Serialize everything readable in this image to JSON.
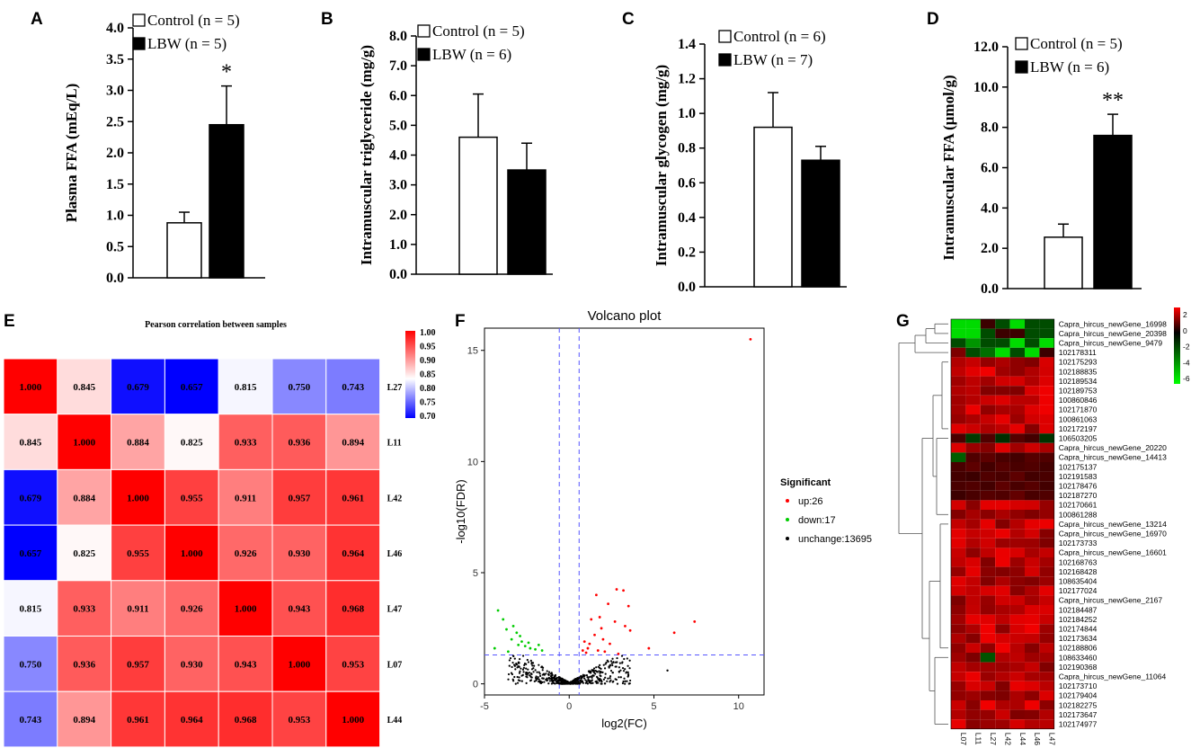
{
  "panels": {
    "A": "A",
    "B": "B",
    "C": "C",
    "D": "D",
    "E": "E",
    "F": "F",
    "G": "G"
  },
  "chart_data": [
    {
      "id": "A",
      "type": "bar",
      "ylabel": "Plasma FFA (mEq/L)",
      "ylim": [
        0,
        4.0
      ],
      "yticks": [
        "0.0",
        "0.5",
        "1.0",
        "1.5",
        "2.0",
        "2.5",
        "3.0",
        "3.5",
        "4.0"
      ],
      "series": [
        {
          "name": "Control (n = 5)",
          "value": 0.88,
          "error": 0.17,
          "fill": "#ffffff"
        },
        {
          "name": "LBW (n = 5)",
          "value": 2.45,
          "error": 0.62,
          "fill": "#000000"
        }
      ],
      "significance": "*"
    },
    {
      "id": "B",
      "type": "bar",
      "ylabel": "Intramuscular triglyceride (mg/g)",
      "ylim": [
        0,
        8.0
      ],
      "yticks": [
        "0.0",
        "1.0",
        "2.0",
        "3.0",
        "4.0",
        "5.0",
        "6.0",
        "7.0",
        "8.0"
      ],
      "series": [
        {
          "name": "Control (n = 5)",
          "value": 4.6,
          "error": 1.45,
          "fill": "#ffffff"
        },
        {
          "name": "LBW (n = 6)",
          "value": 3.5,
          "error": 0.9,
          "fill": "#000000"
        }
      ],
      "significance": ""
    },
    {
      "id": "C",
      "type": "bar",
      "ylabel": "Intramuscular glycogen (mg/g)",
      "ylim": [
        0,
        1.4
      ],
      "yticks": [
        "0.0",
        "0.2",
        "0.4",
        "0.6",
        "0.8",
        "1.0",
        "1.2",
        "1.4"
      ],
      "series": [
        {
          "name": "Control (n = 6)",
          "value": 0.92,
          "error": 0.2,
          "fill": "#ffffff"
        },
        {
          "name": "LBW (n = 7)",
          "value": 0.73,
          "error": 0.08,
          "fill": "#000000"
        }
      ],
      "significance": ""
    },
    {
      "id": "D",
      "type": "bar",
      "ylabel": "Intramuscular FFA (μmol/g)",
      "ylim": [
        0,
        12.0
      ],
      "yticks": [
        "0.0",
        "2.0",
        "4.0",
        "6.0",
        "8.0",
        "10.0",
        "12.0"
      ],
      "series": [
        {
          "name": "Control (n = 5)",
          "value": 2.55,
          "error": 0.65,
          "fill": "#ffffff"
        },
        {
          "name": "LBW (n = 6)",
          "value": 7.6,
          "error": 1.05,
          "fill": "#000000"
        }
      ],
      "significance": "**"
    },
    {
      "id": "E",
      "type": "heatmap",
      "title": "Pearson correlation between samples",
      "labels": [
        "L27",
        "L11",
        "L42",
        "L46",
        "L47",
        "L07",
        "L44"
      ],
      "matrix": [
        [
          1.0,
          0.845,
          0.679,
          0.657,
          0.815,
          0.75,
          0.743
        ],
        [
          0.845,
          1.0,
          0.884,
          0.825,
          0.933,
          0.936,
          0.894
        ],
        [
          0.679,
          0.884,
          1.0,
          0.955,
          0.911,
          0.957,
          0.961
        ],
        [
          0.657,
          0.825,
          0.955,
          1.0,
          0.926,
          0.93,
          0.964
        ],
        [
          0.815,
          0.933,
          0.911,
          0.926,
          1.0,
          0.943,
          0.968
        ],
        [
          0.75,
          0.936,
          0.957,
          0.93,
          0.943,
          1.0,
          0.953
        ],
        [
          0.743,
          0.894,
          0.961,
          0.964,
          0.968,
          0.953,
          1.0
        ]
      ],
      "matrix_text": [
        [
          "1.000",
          "0.845",
          "0.679",
          "0.657",
          "0.815",
          "0.750",
          "0.743"
        ],
        [
          "0.845",
          "1.000",
          "0.884",
          "0.825",
          "0.933",
          "0.936",
          "0.894"
        ],
        [
          "0.679",
          "0.884",
          "1.000",
          "0.955",
          "0.911",
          "0.957",
          "0.961"
        ],
        [
          "0.657",
          "0.825",
          "0.955",
          "1.000",
          "0.926",
          "0.930",
          "0.964"
        ],
        [
          "0.815",
          "0.933",
          "0.911",
          "0.926",
          "1.000",
          "0.943",
          "0.968"
        ],
        [
          "0.750",
          "0.936",
          "0.957",
          "0.930",
          "0.943",
          "1.000",
          "0.953"
        ],
        [
          "0.743",
          "0.894",
          "0.961",
          "0.964",
          "0.968",
          "0.953",
          "1.000"
        ]
      ],
      "colorbar_ticks": [
        "1.00",
        "0.95",
        "0.90",
        "0.85",
        "0.80",
        "0.75",
        "0.70"
      ],
      "vmin": 0.67,
      "vmax": 1.0,
      "colors": {
        "low": "#0000ff",
        "mid": "#ffffff",
        "high": "#ff0000"
      }
    },
    {
      "id": "F",
      "type": "scatter",
      "title": "Volcano plot",
      "xlabel": "log2(FC)",
      "ylabel": "-log10(FDR)",
      "xlim": [
        -5,
        11.5
      ],
      "ylim": [
        -0.5,
        16
      ],
      "xticks": [
        "-5",
        "0",
        "5",
        "10"
      ],
      "yticks": [
        "0",
        "5",
        "10",
        "15"
      ],
      "legend_title": "Significant",
      "legend": [
        {
          "label": "up:26",
          "color": "#ff0000"
        },
        {
          "label": "down:17",
          "color": "#00cc00"
        },
        {
          "label": "unchange:13695",
          "color": "#000000"
        }
      ],
      "thresholds": {
        "x": [
          -0.585,
          0.585
        ],
        "y": 1.3
      },
      "up_points": [
        [
          10.7,
          15.5
        ],
        [
          3.2,
          4.2
        ],
        [
          2.8,
          4.25
        ],
        [
          1.6,
          4.0
        ],
        [
          2.3,
          3.6
        ],
        [
          3.5,
          3.5
        ],
        [
          1.8,
          3.0
        ],
        [
          1.3,
          2.9
        ],
        [
          2.7,
          2.8
        ],
        [
          7.4,
          2.8
        ],
        [
          3.3,
          2.6
        ],
        [
          1.9,
          2.5
        ],
        [
          3.6,
          2.4
        ],
        [
          6.2,
          2.3
        ],
        [
          1.5,
          2.2
        ],
        [
          2.0,
          2.0
        ],
        [
          0.9,
          1.9
        ],
        [
          1.2,
          1.8
        ],
        [
          2.4,
          1.8
        ],
        [
          4.7,
          1.6
        ],
        [
          1.1,
          1.6
        ],
        [
          1.7,
          1.5
        ],
        [
          0.8,
          1.5
        ],
        [
          2.1,
          1.45
        ],
        [
          1.0,
          1.4
        ],
        [
          2.9,
          1.35
        ]
      ],
      "down_points": [
        [
          -4.2,
          3.3
        ],
        [
          -3.9,
          2.9
        ],
        [
          -3.3,
          2.6
        ],
        [
          -3.7,
          2.45
        ],
        [
          -3.1,
          2.3
        ],
        [
          -2.9,
          2.15
        ],
        [
          -3.4,
          2.0
        ],
        [
          -2.8,
          1.9
        ],
        [
          -2.4,
          1.85
        ],
        [
          -3.0,
          1.75
        ],
        [
          -2.6,
          1.7
        ],
        [
          -4.4,
          1.6
        ],
        [
          -2.3,
          1.6
        ],
        [
          -1.8,
          1.75
        ],
        [
          -2.0,
          1.55
        ],
        [
          -1.6,
          1.5
        ],
        [
          -3.6,
          1.45
        ]
      ]
    },
    {
      "id": "G",
      "type": "heatmap",
      "columns": [
        "L07",
        "L11",
        "L27",
        "L42",
        "L44",
        "L46",
        "L47"
      ],
      "rows": [
        "Capra_hircus_newGene_16998",
        "Capra_hircus_newGene_20398",
        "Capra_hircus_newGene_9479",
        "102178311",
        "102175293",
        "102188835",
        "102189534",
        "102189753",
        "100860846",
        "102171870",
        "100861063",
        "102172197",
        "106503205",
        "Capra_hircus_newGene_20220",
        "Capra_hircus_newGene_14413",
        "102175137",
        "102191583",
        "102178476",
        "102187270",
        "102170661",
        "100861288",
        "Capra_hircus_newGene_13214",
        "Capra_hircus_newGene_16970",
        "102173733",
        "Capra_hircus_newGene_16601",
        "102168763",
        "102168428",
        "108635404",
        "102177024",
        "Capra_hircus_newGene_2167",
        "102184487",
        "102184252",
        "102174844",
        "102173634",
        "102188806",
        "108633460",
        "102190368",
        "Capra_hircus_newGene_11064",
        "102173710",
        "102179404",
        "102182275",
        "102173647",
        "102174977"
      ],
      "colorbar_ticks": [
        "2",
        "0",
        "-2",
        "-4",
        "-6"
      ],
      "vmin": -6,
      "vmax": 3
    }
  ]
}
